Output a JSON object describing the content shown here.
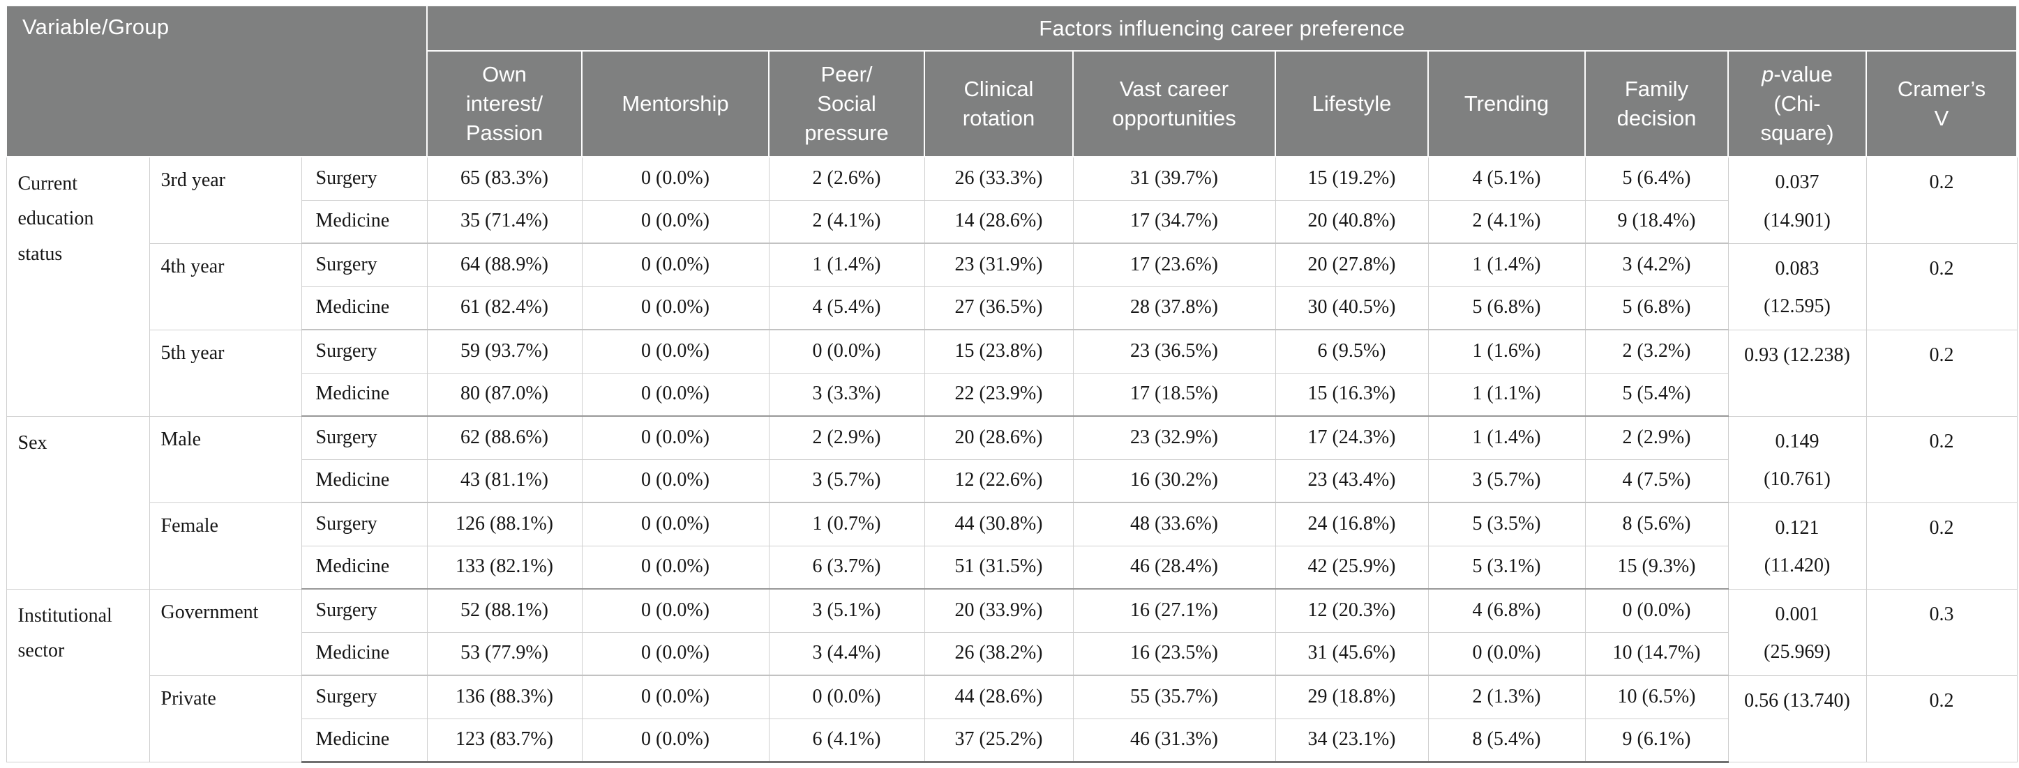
{
  "table": {
    "corner_header": "Variable/Group",
    "span_header": "Factors influencing career preference",
    "factor_columns": [
      "Own\ninterest/\nPassion",
      "Mentorship",
      "Peer/\nSocial\npressure",
      "Clinical\nrotation",
      "Vast career\nopportunities",
      "Lifestyle",
      "Trending",
      "Family\ndecision"
    ],
    "p_header": {
      "italic": "p",
      "rest": "-value\n(Chi-\nsquare)"
    },
    "cramers_v_header": "Cramer’s\nV",
    "groups": [
      {
        "variable": "Current\neducation\nstatus",
        "subgroups": [
          {
            "label": "3rd year",
            "rows": [
              {
                "specialty": "Surgery",
                "values": [
                  "65 (83.3%)",
                  "0 (0.0%)",
                  "2 (2.6%)",
                  "26 (33.3%)",
                  "31 (39.7%)",
                  "15 (19.2%)",
                  "4 (5.1%)",
                  "5 (6.4%)"
                ]
              },
              {
                "specialty": "Medicine",
                "values": [
                  "35 (71.4%)",
                  "0 (0.0%)",
                  "2 (4.1%)",
                  "14 (28.6%)",
                  "17 (34.7%)",
                  "20 (40.8%)",
                  "2 (4.1%)",
                  "9 (18.4%)"
                ]
              }
            ],
            "p_value": "0.037\n(14.901)",
            "cramers_v": "0.2"
          },
          {
            "label": "4th year",
            "rows": [
              {
                "specialty": "Surgery",
                "values": [
                  "64 (88.9%)",
                  "0 (0.0%)",
                  "1 (1.4%)",
                  "23 (31.9%)",
                  "17 (23.6%)",
                  "20 (27.8%)",
                  "1 (1.4%)",
                  "3 (4.2%)"
                ]
              },
              {
                "specialty": "Medicine",
                "values": [
                  "61 (82.4%)",
                  "0 (0.0%)",
                  "4 (5.4%)",
                  "27 (36.5%)",
                  "28 (37.8%)",
                  "30 (40.5%)",
                  "5 (6.8%)",
                  "5 (6.8%)"
                ]
              }
            ],
            "p_value": "0.083\n(12.595)",
            "cramers_v": "0.2"
          },
          {
            "label": "5th year",
            "rows": [
              {
                "specialty": "Surgery",
                "values": [
                  "59 (93.7%)",
                  "0 (0.0%)",
                  "0 (0.0%)",
                  "15 (23.8%)",
                  "23 (36.5%)",
                  "6 (9.5%)",
                  "1 (1.6%)",
                  "2 (3.2%)"
                ]
              },
              {
                "specialty": "Medicine",
                "values": [
                  "80 (87.0%)",
                  "0 (0.0%)",
                  "3 (3.3%)",
                  "22 (23.9%)",
                  "17 (18.5%)",
                  "15 (16.3%)",
                  "1 (1.1%)",
                  "5 (5.4%)"
                ]
              }
            ],
            "p_value": "0.93 (12.238)",
            "cramers_v": "0.2"
          }
        ]
      },
      {
        "variable": "Sex",
        "subgroups": [
          {
            "label": "Male",
            "rows": [
              {
                "specialty": "Surgery",
                "values": [
                  "62 (88.6%)",
                  "0 (0.0%)",
                  "2 (2.9%)",
                  "20 (28.6%)",
                  "23 (32.9%)",
                  "17 (24.3%)",
                  "1 (1.4%)",
                  "2 (2.9%)"
                ]
              },
              {
                "specialty": "Medicine",
                "values": [
                  "43 (81.1%)",
                  "0 (0.0%)",
                  "3 (5.7%)",
                  "12 (22.6%)",
                  "16 (30.2%)",
                  "23 (43.4%)",
                  "3 (5.7%)",
                  "4 (7.5%)"
                ]
              }
            ],
            "p_value": "0.149\n(10.761)",
            "cramers_v": "0.2"
          },
          {
            "label": "Female",
            "rows": [
              {
                "specialty": "Surgery",
                "values": [
                  "126 (88.1%)",
                  "0 (0.0%)",
                  "1 (0.7%)",
                  "44 (30.8%)",
                  "48 (33.6%)",
                  "24 (16.8%)",
                  "5 (3.5%)",
                  "8 (5.6%)"
                ]
              },
              {
                "specialty": "Medicine",
                "values": [
                  "133 (82.1%)",
                  "0 (0.0%)",
                  "6 (3.7%)",
                  "51 (31.5%)",
                  "46 (28.4%)",
                  "42 (25.9%)",
                  "5 (3.1%)",
                  "15 (9.3%)"
                ]
              }
            ],
            "p_value": "0.121\n(11.420)",
            "cramers_v": "0.2"
          }
        ]
      },
      {
        "variable": "Institutional\nsector",
        "subgroups": [
          {
            "label": "Government",
            "rows": [
              {
                "specialty": "Surgery",
                "values": [
                  "52 (88.1%)",
                  "0 (0.0%)",
                  "3 (5.1%)",
                  "20 (33.9%)",
                  "16 (27.1%)",
                  "12 (20.3%)",
                  "4 (6.8%)",
                  "0 (0.0%)"
                ]
              },
              {
                "specialty": "Medicine",
                "values": [
                  "53 (77.9%)",
                  "0 (0.0%)",
                  "3 (4.4%)",
                  "26 (38.2%)",
                  "16 (23.5%)",
                  "31 (45.6%)",
                  "0 (0.0%)",
                  "10 (14.7%)"
                ]
              }
            ],
            "p_value": "0.001\n(25.969)",
            "cramers_v": "0.3"
          },
          {
            "label": "Private",
            "rows": [
              {
                "specialty": "Surgery",
                "values": [
                  "136 (88.3%)",
                  "0 (0.0%)",
                  "0 (0.0%)",
                  "44 (28.6%)",
                  "55 (35.7%)",
                  "29 (18.8%)",
                  "2 (1.3%)",
                  "10 (6.5%)"
                ]
              },
              {
                "specialty": "Medicine",
                "values": [
                  "123 (83.7%)",
                  "0 (0.0%)",
                  "6 (4.1%)",
                  "37 (25.2%)",
                  "46 (31.3%)",
                  "34 (23.1%)",
                  "8 (5.4%)",
                  "9 (6.1%)"
                ]
              }
            ],
            "p_value": "0.56 (13.740)",
            "cramers_v": "0.2"
          }
        ]
      }
    ]
  }
}
